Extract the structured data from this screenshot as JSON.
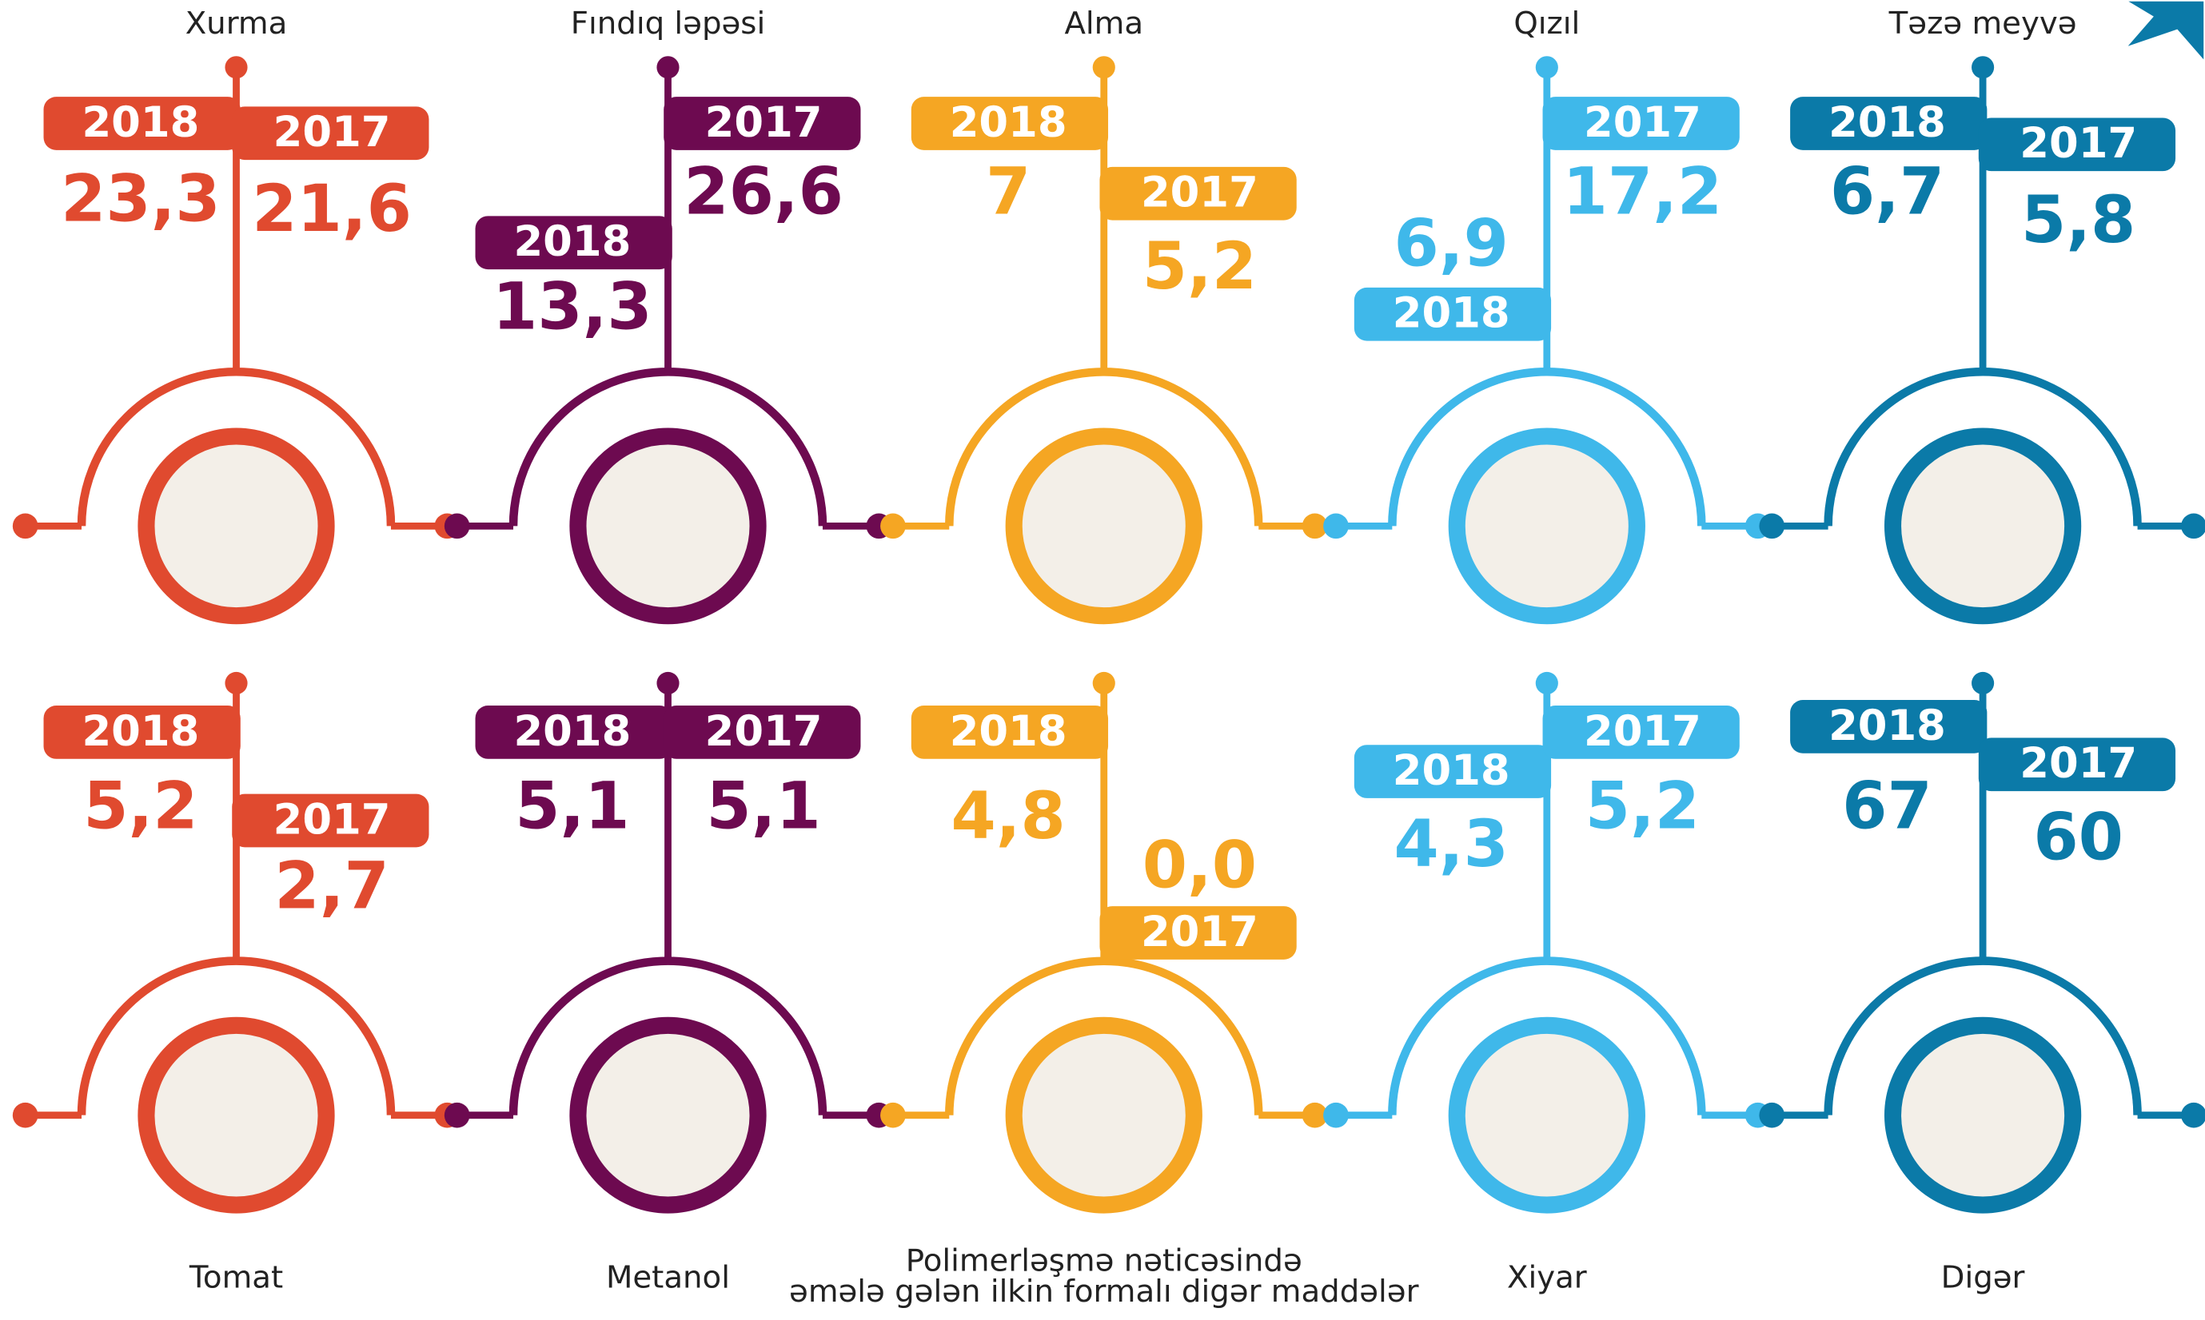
{
  "items": [
    {
      "name_lines": [
        "Xurma"
      ],
      "color": "#e04a2f",
      "year_a": "2018",
      "value_a": "23,3",
      "year_b": "2017",
      "value_b": "21,6"
    },
    {
      "name_lines": [
        "Fındıq ləpəsi"
      ],
      "color": "#6d0a50",
      "year_a": "2018",
      "value_a": "13,3",
      "year_b": "2017",
      "value_b": "26,6"
    },
    {
      "name_lines": [
        "Alma"
      ],
      "color": "#f5a623",
      "year_a": "2018",
      "value_a": "7",
      "year_b": "2017",
      "value_b": "5,2"
    },
    {
      "name_lines": [
        "Qızıl"
      ],
      "color": "#3fb8ea",
      "year_a": "2018",
      "value_a": "6,9",
      "year_b": "2017",
      "value_b": "17,2"
    },
    {
      "name_lines": [
        "Təzə meyvə"
      ],
      "color": "#0b7aa8",
      "year_a": "2018",
      "value_a": "6,7",
      "year_b": "2017",
      "value_b": "5,8"
    },
    {
      "name_lines": [
        "Tomat"
      ],
      "color": "#e04a2f",
      "year_a": "2018",
      "value_a": "5,2",
      "year_b": "2017",
      "value_b": "2,7"
    },
    {
      "name_lines": [
        "Metanol"
      ],
      "color": "#6d0a50",
      "year_a": "2018",
      "value_a": "5,1",
      "year_b": "2017",
      "value_b": "5,1"
    },
    {
      "name_lines": [
        "Polimerləşmə nəticəsində",
        "əmələ gələn ilkin formalı digər maddələr"
      ],
      "color": "#f5a623",
      "year_a": "2018",
      "value_a": "4,8",
      "year_b": "2017",
      "value_b": "0,0"
    },
    {
      "name_lines": [
        "Xiyar"
      ],
      "color": "#3fb8ea",
      "year_a": "2018",
      "value_a": "4,3",
      "year_b": "2017",
      "value_b": "5,2"
    },
    {
      "name_lines": [
        "Digər"
      ],
      "color": "#0b7aa8",
      "year_a": "2018",
      "value_a": "67",
      "year_b": "2017",
      "value_b": "60"
    }
  ]
}
